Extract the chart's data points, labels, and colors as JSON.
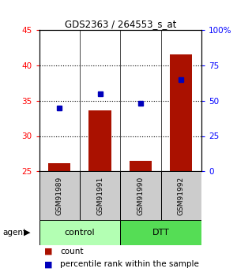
{
  "title": "GDS2363 / 264553_s_at",
  "samples": [
    "GSM91989",
    "GSM91991",
    "GSM91990",
    "GSM91992"
  ],
  "counts": [
    26.2,
    33.6,
    26.5,
    41.5
  ],
  "percentiles": [
    45,
    55,
    48,
    65
  ],
  "ylim_left": [
    25,
    45
  ],
  "ylim_right": [
    0,
    100
  ],
  "yticks_left": [
    25,
    30,
    35,
    40,
    45
  ],
  "yticks_right": [
    0,
    25,
    50,
    75,
    100
  ],
  "ytick_labels_right": [
    "0",
    "25",
    "50",
    "75",
    "100%"
  ],
  "groups": [
    {
      "label": "control",
      "indices": [
        0,
        1
      ],
      "color": "#b3ffb3"
    },
    {
      "label": "DTT",
      "indices": [
        2,
        3
      ],
      "color": "#55dd55"
    }
  ],
  "bar_color": "#aa1100",
  "dot_color": "#0000bb",
  "bar_width": 0.55,
  "bg_color": "#ffffff",
  "sample_box_color": "#cccccc",
  "legend_count_color": "#aa1100",
  "legend_percentile_color": "#0000bb",
  "grid_yticks": [
    30,
    35,
    40
  ]
}
